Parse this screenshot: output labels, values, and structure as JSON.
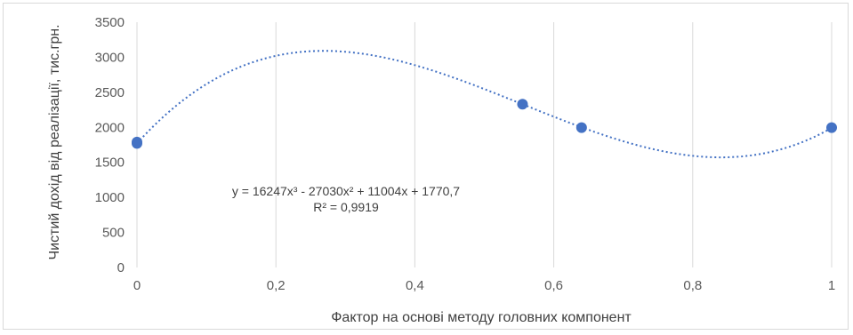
{
  "chart_data": {
    "type": "scatter",
    "title": "",
    "xlabel": "Фактор на основі методу головних компонент",
    "ylabel": "Чистий дохід від реалізації, тис.грн.",
    "xlim": [
      0,
      1
    ],
    "ylim": [
      0,
      3500
    ],
    "x_ticks": [
      "0",
      "0,2",
      "0,4",
      "0,6",
      "0,8",
      "1"
    ],
    "x_tick_values": [
      0,
      0.2,
      0.4,
      0.6,
      0.8,
      1
    ],
    "y_ticks": [
      "0",
      "500",
      "1000",
      "1500",
      "2000",
      "2500",
      "3000",
      "3500"
    ],
    "y_tick_values": [
      0,
      500,
      1000,
      1500,
      2000,
      2500,
      3000,
      3500
    ],
    "grid": "vertical",
    "series": [
      {
        "points": [
          {
            "x": 0,
            "y": 1790
          },
          {
            "x": 0,
            "y": 1770
          },
          {
            "x": 0.555,
            "y": 2330
          },
          {
            "x": 0.64,
            "y": 1995
          },
          {
            "x": 1,
            "y": 1995
          }
        ]
      }
    ],
    "trendline": {
      "type": "polynomial",
      "order": 3,
      "coefficients": [
        16247,
        -27030,
        11004,
        1770.7
      ],
      "equation": "y = 16247x³ - 27030x² + 11004x + 1770,7",
      "r_squared": "R² = 0,9919"
    },
    "colors": {
      "marker": "#4472c4",
      "trendline": "#4472c4",
      "grid": "#d9d9d9",
      "axis_text": "#595959"
    }
  }
}
